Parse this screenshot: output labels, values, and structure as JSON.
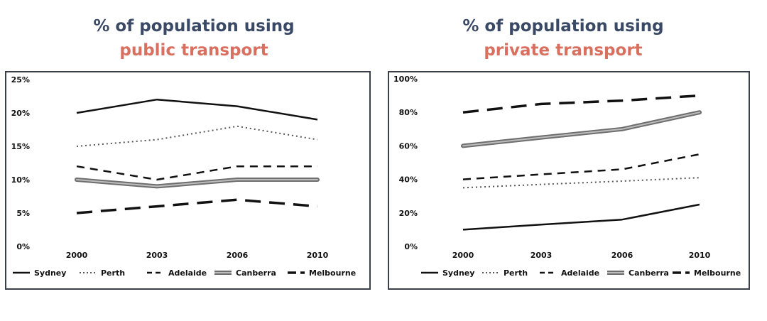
{
  "charts": [
    {
      "title_line1": "% of population using",
      "title_line2": "public transport",
      "title_colors": {
        "line1": "#3a4a66",
        "line2": "#d9705f"
      }
    },
    {
      "title_line1": "% of population using",
      "title_line2": "private transport",
      "title_colors": {
        "line1": "#3a4a66",
        "line2": "#d9705f"
      }
    }
  ],
  "chart_data": [
    {
      "type": "line",
      "title": "% of population using public transport",
      "categories": [
        "2000",
        "2003",
        "2006",
        "2010"
      ],
      "ylim": [
        0,
        25
      ],
      "yticks": [
        0,
        5,
        10,
        15,
        20,
        25
      ],
      "ytick_labels": [
        "0%",
        "5%",
        "10%",
        "15%",
        "20%",
        "25%"
      ],
      "grid": false,
      "legend_position": "bottom",
      "series": [
        {
          "name": "Sydney",
          "values": [
            20,
            22,
            21,
            19
          ],
          "style": "solid",
          "color": "#111111"
        },
        {
          "name": "Perth",
          "values": [
            15,
            16,
            18,
            16
          ],
          "style": "dotted",
          "color": "#555555"
        },
        {
          "name": "Adelaide",
          "values": [
            12,
            10,
            12,
            12
          ],
          "style": "dashed",
          "color": "#111111"
        },
        {
          "name": "Canberra",
          "values": [
            10,
            9,
            10,
            10
          ],
          "style": "double",
          "color": "#888888"
        },
        {
          "name": "Melbourne",
          "values": [
            5,
            6,
            7,
            6
          ],
          "style": "longdash",
          "color": "#111111"
        }
      ]
    },
    {
      "type": "line",
      "title": "% of population using private transport",
      "categories": [
        "2000",
        "2003",
        "2006",
        "2010"
      ],
      "ylim": [
        0,
        100
      ],
      "yticks": [
        0,
        20,
        40,
        60,
        80,
        100
      ],
      "ytick_labels": [
        "0%",
        "20%",
        "40%",
        "60%",
        "80%",
        "100%"
      ],
      "grid": false,
      "legend_position": "bottom",
      "series": [
        {
          "name": "Sydney",
          "values": [
            10,
            13,
            16,
            25
          ],
          "style": "solid",
          "color": "#111111"
        },
        {
          "name": "Perth",
          "values": [
            35,
            37,
            39,
            41
          ],
          "style": "dotted",
          "color": "#555555"
        },
        {
          "name": "Adelaide",
          "values": [
            40,
            43,
            46,
            55
          ],
          "style": "dashed",
          "color": "#111111"
        },
        {
          "name": "Canberra",
          "values": [
            60,
            65,
            70,
            80
          ],
          "style": "double",
          "color": "#888888"
        },
        {
          "name": "Melbourne",
          "values": [
            80,
            85,
            87,
            90
          ],
          "style": "longdash",
          "color": "#111111"
        }
      ]
    }
  ]
}
